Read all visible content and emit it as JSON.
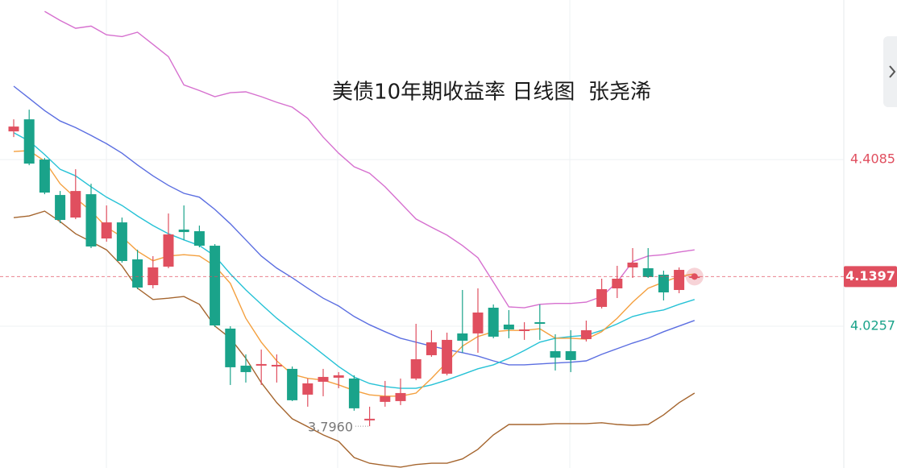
{
  "chart_data": {
    "type": "candlestick",
    "title": "美债10年期收益率 日线图  张尧浠",
    "ylim": [
      3.7,
      4.775
    ],
    "yticks": [
      4.4085,
      4.0257
    ],
    "ytick_colors": [
      "#e04f5f",
      "#1aa38a"
    ],
    "grid": true,
    "up_color": "#e04f5f",
    "down_color": "#1aa38a",
    "last_price": 4.1397,
    "last_price_color": "#e04f5f",
    "min_label": {
      "value": 3.796,
      "label": "3.7960"
    },
    "candles": {
      "open": [
        4.4732,
        4.5009,
        4.4085,
        4.3271,
        4.2753,
        4.3289,
        4.2272,
        4.2642,
        4.1792,
        4.12,
        4.1625,
        4.2476,
        4.2439,
        4.2106,
        4.0202,
        3.9351,
        3.9351,
        3.9332,
        3.9277,
        3.8685,
        3.8981,
        3.9074,
        3.9055,
        3.8094,
        3.8519,
        3.8537,
        3.9055,
        3.9591,
        3.9166,
        4.0091,
        4.0091,
        4.0682,
        4.0294,
        4.0146,
        4.0349,
        3.9684,
        3.9684,
        3.9961,
        4.0701,
        4.1126,
        4.1607,
        4.1588,
        4.144,
        4.1089,
        4.1366
      ],
      "high": [
        4.5009,
        4.5231,
        4.4121,
        4.3363,
        4.3863,
        4.353,
        4.3031,
        4.2753,
        4.2014,
        4.1866,
        4.2846,
        4.3031,
        4.2568,
        4.2143,
        4.0257,
        3.961,
        3.9721,
        3.961,
        3.9332,
        3.9055,
        3.9277,
        3.9203,
        3.9129,
        3.8408,
        3.9,
        3.9055,
        4.0312,
        4.0165,
        4.0109,
        4.1089,
        4.1126,
        4.0756,
        4.0627,
        4.0349,
        4.0756,
        4.0072,
        4.0165,
        4.0386,
        4.1348,
        4.1644,
        4.2051,
        4.2051,
        4.1533,
        4.1607,
        4.144
      ],
      "low": [
        4.4602,
        4.3955,
        4.3289,
        4.2624,
        4.2716,
        4.2051,
        4.2198,
        4.1718,
        4.1108,
        4.1126,
        4.1588,
        4.2235,
        4.2069,
        4.0239,
        3.8907,
        3.8963,
        3.8907,
        3.8963,
        3.8537,
        3.8408,
        3.8648,
        3.8833,
        3.8316,
        3.796,
        3.8408,
        3.8445,
        3.9018,
        3.9554,
        3.9129,
        3.9647,
        3.9647,
        3.998,
        3.998,
        3.9943,
        3.9943,
        3.924,
        3.9203,
        3.9906,
        4.0664,
        4.0904,
        4.1366,
        4.1366,
        4.0849,
        4.1015,
        4.133
      ],
      "close": [
        4.4843,
        4.3992,
        4.3326,
        4.2698,
        4.3363,
        4.2088,
        4.2642,
        4.1755,
        4.1145,
        4.1607,
        4.2365,
        4.242,
        4.2106,
        4.0275,
        3.9314,
        3.9203,
        3.9388,
        3.9369,
        3.8556,
        3.8944,
        3.9092,
        3.9129,
        3.8371,
        3.8131,
        3.8648,
        3.8722,
        3.9499,
        3.9887,
        3.9943,
        3.9924,
        4.0571,
        4.0017,
        4.0183,
        4.0183,
        4.0312,
        3.9536,
        3.948,
        4.0165,
        4.1108,
        4.1348,
        4.1718,
        4.1385,
        4.1034,
        4.1551,
        4.1397
      ]
    },
    "lines": [
      {
        "color": "#d670cf",
        "values": [
          null,
          null,
          4.749,
          4.728,
          4.71,
          4.715,
          4.695,
          4.691,
          4.701,
          4.673,
          4.645,
          4.58,
          4.567,
          4.553,
          4.562,
          4.564,
          4.553,
          4.54,
          4.529,
          4.503,
          4.46,
          4.423,
          4.392,
          4.377,
          4.346,
          4.309,
          4.272,
          4.253,
          4.235,
          4.211,
          4.183,
          4.127,
          4.07,
          4.068,
          4.076,
          4.078,
          4.078,
          4.081,
          4.094,
          4.127,
          4.174,
          4.187,
          4.19,
          4.196,
          4.201
        ]
      },
      {
        "color": "#5b6ee1",
        "values": [
          4.577,
          4.549,
          4.521,
          4.497,
          4.482,
          4.464,
          4.445,
          4.423,
          4.396,
          4.371,
          4.349,
          4.331,
          4.322,
          4.294,
          4.261,
          4.224,
          4.187,
          4.159,
          4.137,
          4.113,
          4.09,
          4.072,
          4.048,
          4.029,
          4.013,
          3.998,
          3.989,
          3.98,
          3.972,
          3.965,
          3.957,
          3.946,
          3.937,
          3.937,
          3.939,
          3.941,
          3.943,
          3.946,
          3.961,
          3.974,
          3.987,
          3.998,
          4.013,
          4.026,
          4.039
        ]
      },
      {
        "color": "#26c2d6",
        "values": [
          4.47,
          4.451,
          4.42,
          4.386,
          4.371,
          4.346,
          4.322,
          4.303,
          4.279,
          4.257,
          4.238,
          4.224,
          4.211,
          4.187,
          4.146,
          4.109,
          4.076,
          4.044,
          4.016,
          3.989,
          3.961,
          3.933,
          3.909,
          3.894,
          3.887,
          3.883,
          3.883,
          3.891,
          3.902,
          3.915,
          3.928,
          3.937,
          3.952,
          3.97,
          3.989,
          3.998,
          4.002,
          4.005,
          4.016,
          4.031,
          4.048,
          4.057,
          4.063,
          4.076,
          4.087
        ]
      },
      {
        "color": "#f4a03f",
        "values": [
          4.427,
          4.429,
          4.405,
          4.353,
          4.32,
          4.29,
          4.253,
          4.231,
          4.198,
          4.176,
          4.187,
          4.19,
          4.187,
          4.164,
          4.124,
          4.044,
          3.989,
          3.946,
          3.915,
          3.906,
          3.902,
          3.891,
          3.878,
          3.868,
          3.865,
          3.865,
          3.872,
          3.906,
          3.943,
          3.98,
          4.002,
          4.013,
          4.016,
          4.016,
          4.02,
          3.998,
          3.998,
          3.996,
          4.013,
          4.044,
          4.081,
          4.113,
          4.127,
          4.14,
          4.146
        ]
      },
      {
        "color": "#a5652e",
        "values": [
          4.275,
          4.279,
          4.29,
          4.266,
          4.238,
          4.22,
          4.201,
          4.164,
          4.113,
          4.087,
          4.09,
          4.094,
          4.076,
          4.026,
          3.998,
          3.952,
          3.896,
          3.85,
          3.813,
          3.795,
          3.776,
          3.761,
          3.724,
          3.711,
          3.706,
          3.702,
          3.708,
          3.711,
          3.711,
          3.721,
          3.743,
          3.776,
          3.8,
          3.8,
          3.8,
          3.802,
          3.802,
          3.802,
          3.804,
          3.8,
          3.798,
          3.8,
          3.822,
          3.85,
          3.872
        ]
      }
    ]
  }
}
